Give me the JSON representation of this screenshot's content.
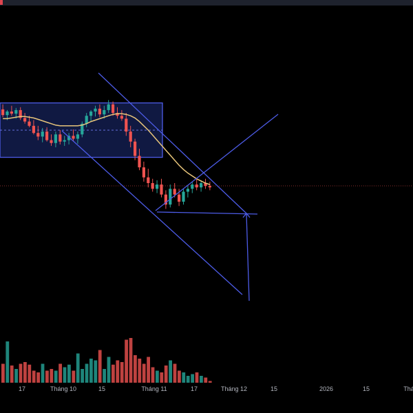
{
  "colors": {
    "background": "#000000",
    "bull": "#26a69a",
    "bear": "#ef5350",
    "ma": "#e8c57b",
    "drawings": "#4d5ce8",
    "box_fill": "#1e2d78",
    "price_line": "#ef5350"
  },
  "chart_data": {
    "type": "candlestick",
    "symbol": "",
    "x_axis_ticks": [
      "17",
      "Tháng 10",
      "15",
      "Tháng 11",
      "17",
      "Tháng 12",
      "15",
      "2026",
      "15",
      "Thá"
    ],
    "y_axis_visible": false,
    "candles": [
      {
        "o": 53,
        "h": 60,
        "l": 42,
        "c": 45
      },
      {
        "o": 45,
        "h": 52,
        "l": 38,
        "c": 50
      },
      {
        "o": 50,
        "h": 58,
        "l": 44,
        "c": 47
      },
      {
        "o": 47,
        "h": 55,
        "l": 40,
        "c": 52
      },
      {
        "o": 52,
        "h": 56,
        "l": 38,
        "c": 41
      },
      {
        "o": 41,
        "h": 48,
        "l": 33,
        "c": 36
      },
      {
        "o": 36,
        "h": 44,
        "l": 28,
        "c": 30
      },
      {
        "o": 30,
        "h": 38,
        "l": 18,
        "c": 20
      },
      {
        "o": 20,
        "h": 30,
        "l": 10,
        "c": 15
      },
      {
        "o": 15,
        "h": 27,
        "l": 7,
        "c": 22
      },
      {
        "o": 22,
        "h": 28,
        "l": 8,
        "c": 10
      },
      {
        "o": 10,
        "h": 18,
        "l": 2,
        "c": 6
      },
      {
        "o": 6,
        "h": 22,
        "l": 0,
        "c": 18
      },
      {
        "o": 18,
        "h": 24,
        "l": 4,
        "c": 8
      },
      {
        "o": 8,
        "h": 16,
        "l": 2,
        "c": 10
      },
      {
        "o": 10,
        "h": 20,
        "l": 4,
        "c": 16
      },
      {
        "o": 16,
        "h": 25,
        "l": 8,
        "c": 12
      },
      {
        "o": 12,
        "h": 22,
        "l": 5,
        "c": 18
      },
      {
        "o": 18,
        "h": 36,
        "l": 14,
        "c": 33
      },
      {
        "o": 33,
        "h": 48,
        "l": 28,
        "c": 44
      },
      {
        "o": 44,
        "h": 52,
        "l": 36,
        "c": 50
      },
      {
        "o": 50,
        "h": 58,
        "l": 43,
        "c": 54
      },
      {
        "o": 54,
        "h": 60,
        "l": 42,
        "c": 46
      },
      {
        "o": 46,
        "h": 58,
        "l": 40,
        "c": 52
      },
      {
        "o": 52,
        "h": 66,
        "l": 48,
        "c": 60
      },
      {
        "o": 60,
        "h": 64,
        "l": 44,
        "c": 48
      },
      {
        "o": 48,
        "h": 56,
        "l": 40,
        "c": 44
      },
      {
        "o": 44,
        "h": 52,
        "l": 37,
        "c": 40
      },
      {
        "o": 40,
        "h": 48,
        "l": 16,
        "c": 22
      },
      {
        "o": 22,
        "h": 30,
        "l": 0,
        "c": 8
      },
      {
        "o": 8,
        "h": 12,
        "l": -18,
        "c": -12
      },
      {
        "o": -12,
        "h": -2,
        "l": -32,
        "c": -28
      },
      {
        "o": -28,
        "h": -20,
        "l": -48,
        "c": -42
      },
      {
        "o": -42,
        "h": -30,
        "l": -56,
        "c": -50
      },
      {
        "o": -50,
        "h": -44,
        "l": -62,
        "c": -58
      },
      {
        "o": -58,
        "h": -46,
        "l": -64,
        "c": -52
      },
      {
        "o": -52,
        "h": -44,
        "l": -70,
        "c": -66
      },
      {
        "o": -66,
        "h": -60,
        "l": -86,
        "c": -80
      },
      {
        "o": -80,
        "h": -52,
        "l": -84,
        "c": -58
      },
      {
        "o": -58,
        "h": -50,
        "l": -70,
        "c": -66
      },
      {
        "o": -66,
        "h": -58,
        "l": -82,
        "c": -76
      },
      {
        "o": -76,
        "h": -58,
        "l": -80,
        "c": -62
      },
      {
        "o": -62,
        "h": -54,
        "l": -70,
        "c": -58
      },
      {
        "o": -58,
        "h": -48,
        "l": -64,
        "c": -52
      },
      {
        "o": -52,
        "h": -44,
        "l": -60,
        "c": -56
      },
      {
        "o": -56,
        "h": -46,
        "l": -62,
        "c": -50
      },
      {
        "o": -50,
        "h": -44,
        "l": -58,
        "c": -54
      },
      {
        "o": -54,
        "h": -48,
        "l": -60,
        "c": -56
      }
    ],
    "ma_series": [
      40,
      40,
      41,
      42,
      43,
      43,
      42,
      41,
      39,
      37,
      35,
      33,
      31,
      30,
      30,
      30,
      30,
      30,
      31,
      33,
      36,
      38,
      40,
      42,
      44,
      46,
      47,
      47,
      46,
      44,
      41,
      36,
      30,
      24,
      17,
      10,
      3,
      -4,
      -11,
      -18,
      -25,
      -31,
      -36,
      -40,
      -44,
      -47,
      -50,
      -52
    ],
    "volumes": [
      22,
      48,
      20,
      16,
      22,
      24,
      21,
      14,
      12,
      22,
      14,
      16,
      14,
      22,
      18,
      21,
      14,
      34,
      16,
      22,
      28,
      26,
      38,
      16,
      30,
      21,
      26,
      24,
      50,
      52,
      32,
      28,
      22,
      30,
      18,
      14,
      12,
      20,
      26,
      22,
      14,
      12,
      8,
      10,
      12,
      8,
      6,
      2
    ]
  }
}
